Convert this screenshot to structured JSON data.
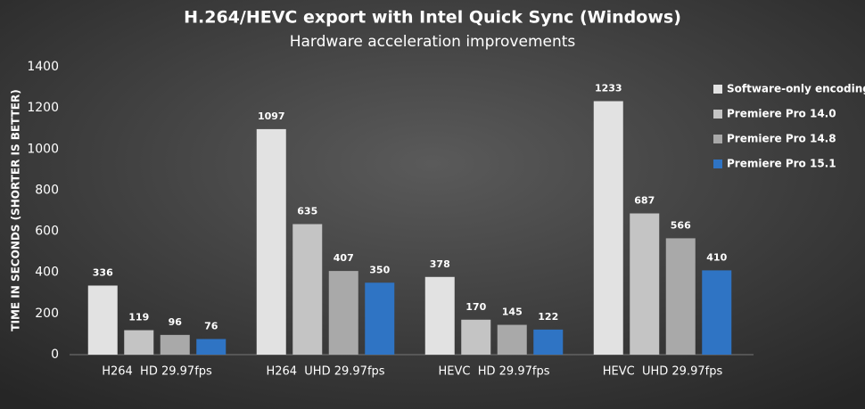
{
  "chart_data": {
    "type": "bar",
    "title": "H.264/HEVC export with Intel Quick Sync (Windows)",
    "subtitle": "Hardware acceleration improvements",
    "y_label": "TIME IN SECONDS (SHORTER IS BETTER)",
    "categories": [
      "H264  HD 29.97fps",
      "H264  UHD 29.97fps",
      "HEVC  HD 29.97fps",
      "HEVC  UHD 29.97fps"
    ],
    "series": [
      {
        "name": "Software-only encoding",
        "color": "#e2e2e2",
        "values": [
          336,
          1097,
          378,
          1233
        ]
      },
      {
        "name": "Premiere Pro 14.0",
        "color": "#c4c4c4",
        "values": [
          119,
          635,
          170,
          687
        ]
      },
      {
        "name": "Premiere Pro 14.8",
        "color": "#a9a9a9",
        "values": [
          96,
          407,
          145,
          566
        ]
      },
      {
        "name": "Premiere Pro 15.1",
        "color": "#2f74c4",
        "values": [
          76,
          350,
          122,
          410
        ]
      }
    ],
    "ylim": [
      0,
      1400
    ],
    "yticks": [
      0,
      200,
      400,
      600,
      800,
      1000,
      1200,
      1400
    ],
    "grid": false,
    "legend": "right"
  }
}
